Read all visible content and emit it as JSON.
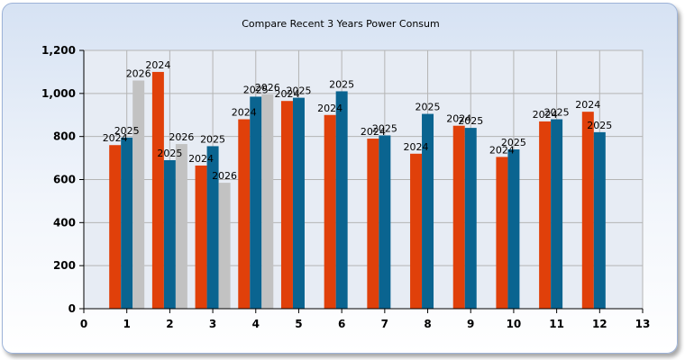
{
  "chart_data": {
    "type": "bar",
    "title": "Compare Recent 3 Years Power Consum",
    "xlabel": "",
    "ylabel": "",
    "xlim": [
      0,
      13
    ],
    "ylim": [
      0,
      1200
    ],
    "x_ticks": [
      "0",
      "1",
      "2",
      "3",
      "4",
      "5",
      "6",
      "7",
      "8",
      "9",
      "10",
      "11",
      "12",
      "13"
    ],
    "y_ticks": [
      "0",
      "200",
      "400",
      "600",
      "800",
      "1,000",
      "1,200"
    ],
    "grid": true,
    "legend": "none",
    "categories": [
      1,
      2,
      3,
      4,
      5,
      6,
      7,
      8,
      9,
      10,
      11,
      12
    ],
    "series": [
      {
        "label": "2024",
        "color": "#e0400a",
        "values": [
          760,
          1100,
          665,
          880,
          965,
          900,
          790,
          720,
          850,
          705,
          870,
          915
        ]
      },
      {
        "label": "2025",
        "color": "#0a6490",
        "values": [
          795,
          690,
          755,
          985,
          980,
          1010,
          805,
          905,
          840,
          740,
          880,
          820
        ]
      },
      {
        "label": "2026",
        "color": "#c2c2c2",
        "values": [
          1060,
          765,
          585,
          995,
          null,
          null,
          null,
          null,
          null,
          null,
          null,
          null
        ]
      }
    ]
  }
}
